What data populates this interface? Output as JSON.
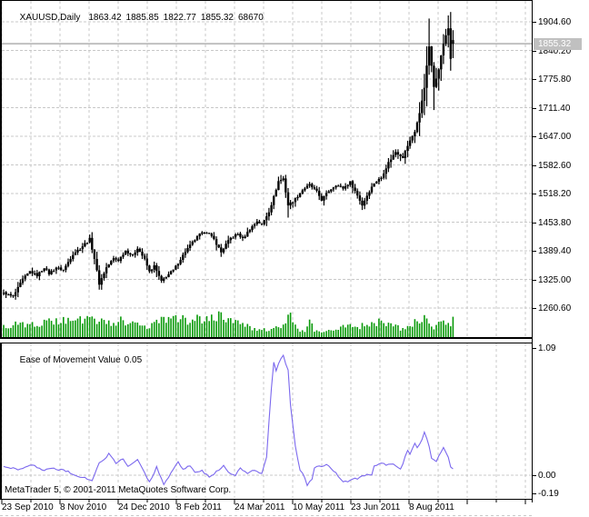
{
  "window": {
    "title_symbol": "XAUUSD,Daily",
    "ohlcv": {
      "open": "1863.42",
      "high": "1885.85",
      "low": "1822.77",
      "close": "1855.32",
      "volume": "68670"
    }
  },
  "price_axis": {
    "tick_labels": [
      "1904.60",
      "1840.20",
      "1775.80",
      "1711.40",
      "1647.00",
      "1582.60",
      "1518.20",
      "1453.80",
      "1389.40",
      "1325.00",
      "1260.60"
    ],
    "current_price_label": "1855.32"
  },
  "indicator": {
    "name": "Ease of Movement Value",
    "current_value": "0.05",
    "axis_tick_labels": [
      "1.09",
      "0.00",
      "-0.19"
    ]
  },
  "time_axis": {
    "labels": [
      "23 Sep 2010",
      "8 Nov 2010",
      "24 Dec 2010",
      "8 Feb 2011",
      "24 Mar 2011",
      "10 May 2011",
      "23 Jun 2011",
      "8 Aug 2011"
    ]
  },
  "footer": {
    "copyright": "MetaTrader 5, © 2001-2011 MetaQuotes Software Corp."
  },
  "colors": {
    "background": "#ffffff",
    "frame": "#000000",
    "grid": "#c8c8c8",
    "bars": "#000000",
    "volume": "#0a9a0a",
    "indicator_line": "#7b68ee",
    "current_price_line": "#c0c0c0",
    "price_badge_bg": "#c0c0c0",
    "price_badge_text": "#ffffff",
    "text": "#000000"
  },
  "chart_data": {
    "type": "ohlc-bar+volume+line",
    "symbol": "XAUUSD",
    "timeframe": "Daily",
    "bar_count": 189,
    "price_ticks": [
      1904.6,
      1840.2,
      1775.8,
      1711.4,
      1647.0,
      1582.6,
      1518.2,
      1453.8,
      1389.4,
      1325.0,
      1260.6
    ],
    "current_price": 1855.32,
    "last_bar": {
      "open": 1863.42,
      "high": 1885.85,
      "low": 1822.77,
      "close": 1855.32,
      "volume": 68670
    },
    "close_anchors": [
      [
        0,
        1295
      ],
      [
        4,
        1286
      ],
      [
        8,
        1325
      ],
      [
        11,
        1343
      ],
      [
        14,
        1334
      ],
      [
        17,
        1352
      ],
      [
        19,
        1338
      ],
      [
        22,
        1352
      ],
      [
        25,
        1346
      ],
      [
        29,
        1382
      ],
      [
        33,
        1400
      ],
      [
        36,
        1416
      ],
      [
        38,
        1372
      ],
      [
        40,
        1315
      ],
      [
        43,
        1352
      ],
      [
        46,
        1372
      ],
      [
        48,
        1368
      ],
      [
        51,
        1390
      ],
      [
        54,
        1378
      ],
      [
        56,
        1396
      ],
      [
        59,
        1370
      ],
      [
        61,
        1342
      ],
      [
        63,
        1355
      ],
      [
        66,
        1320
      ],
      [
        68,
        1332
      ],
      [
        71,
        1346
      ],
      [
        73,
        1362
      ],
      [
        76,
        1388
      ],
      [
        79,
        1408
      ],
      [
        82,
        1426
      ],
      [
        85,
        1432
      ],
      [
        88,
        1415
      ],
      [
        91,
        1386
      ],
      [
        93,
        1404
      ],
      [
        95,
        1418
      ],
      [
        98,
        1428
      ],
      [
        100,
        1416
      ],
      [
        103,
        1438
      ],
      [
        106,
        1456
      ],
      [
        108,
        1448
      ],
      [
        111,
        1478
      ],
      [
        113,
        1510
      ],
      [
        115,
        1546
      ],
      [
        117,
        1552
      ],
      [
        119,
        1492
      ],
      [
        122,
        1506
      ],
      [
        125,
        1526
      ],
      [
        128,
        1538
      ],
      [
        131,
        1522
      ],
      [
        133,
        1504
      ],
      [
        136,
        1524
      ],
      [
        139,
        1538
      ],
      [
        142,
        1530
      ],
      [
        145,
        1544
      ],
      [
        148,
        1514
      ],
      [
        150,
        1492
      ],
      [
        152,
        1514
      ],
      [
        155,
        1542
      ],
      [
        158,
        1554
      ],
      [
        161,
        1588
      ],
      [
        164,
        1612
      ],
      [
        167,
        1600
      ],
      [
        169,
        1626
      ],
      [
        172,
        1658
      ],
      [
        174,
        1698
      ],
      [
        176,
        1758
      ],
      [
        178,
        1850
      ],
      [
        180,
        1758
      ],
      [
        182,
        1800
      ],
      [
        184,
        1856
      ],
      [
        186,
        1890
      ],
      [
        187,
        1822
      ],
      [
        188,
        1855.32
      ]
    ],
    "spike_highs": [
      [
        36,
        1426
      ],
      [
        116,
        1560
      ],
      [
        178,
        1912
      ],
      [
        186,
        1919
      ]
    ],
    "spike_lows": [
      [
        119,
        1464
      ],
      [
        180,
        1706
      ]
    ],
    "volume_profile": [
      [
        0,
        0.42
      ],
      [
        5,
        0.52
      ],
      [
        10,
        0.45
      ],
      [
        15,
        0.55
      ],
      [
        20,
        0.61
      ],
      [
        25,
        0.7
      ],
      [
        28,
        0.61
      ],
      [
        32,
        0.73
      ],
      [
        36,
        0.79
      ],
      [
        38,
        0.67
      ],
      [
        42,
        0.76
      ],
      [
        45,
        0.61
      ],
      [
        50,
        0.67
      ],
      [
        53,
        0.55
      ],
      [
        56,
        0.48
      ],
      [
        60,
        0.39
      ],
      [
        63,
        0.61
      ],
      [
        66,
        0.73
      ],
      [
        70,
        0.67
      ],
      [
        74,
        0.73
      ],
      [
        78,
        0.67
      ],
      [
        82,
        0.76
      ],
      [
        85,
        0.7
      ],
      [
        88,
        0.79
      ],
      [
        91,
        1.0
      ],
      [
        93,
        0.73
      ],
      [
        95,
        0.61
      ],
      [
        98,
        0.55
      ],
      [
        101,
        0.48
      ],
      [
        104,
        0.3
      ],
      [
        107,
        0.27
      ],
      [
        110,
        0.3
      ],
      [
        113,
        0.36
      ],
      [
        116,
        0.42
      ],
      [
        120,
        0.95
      ],
      [
        123,
        0.3
      ],
      [
        126,
        0.24
      ],
      [
        128,
        0.67
      ],
      [
        130,
        0.24
      ],
      [
        133,
        0.21
      ],
      [
        136,
        0.3
      ],
      [
        139,
        0.36
      ],
      [
        142,
        0.48
      ],
      [
        145,
        0.55
      ],
      [
        148,
        0.42
      ],
      [
        151,
        0.48
      ],
      [
        154,
        0.55
      ],
      [
        157,
        0.61
      ],
      [
        160,
        0.42
      ],
      [
        163,
        0.55
      ],
      [
        166,
        0.3
      ],
      [
        169,
        0.48
      ],
      [
        172,
        0.61
      ],
      [
        175,
        0.73
      ],
      [
        177,
        0.67
      ],
      [
        179,
        0.36
      ],
      [
        181,
        0.42
      ],
      [
        183,
        0.61
      ],
      [
        185,
        0.67
      ],
      [
        187,
        0.55
      ],
      [
        188,
        0.67
      ]
    ],
    "eom": {
      "name": "Ease of Movement",
      "zero_level": 0.0,
      "max_tick": 1.09,
      "min_tick": -0.19,
      "values_anchors": [
        [
          0,
          0.07
        ],
        [
          6,
          0.05
        ],
        [
          12,
          0.09
        ],
        [
          17,
          0.04
        ],
        [
          21,
          0.06
        ],
        [
          27,
          0.03
        ],
        [
          33,
          -0.02
        ],
        [
          37,
          -0.04
        ],
        [
          40,
          0.1
        ],
        [
          44,
          0.18
        ],
        [
          47,
          0.1
        ],
        [
          50,
          0.14
        ],
        [
          52,
          0.08
        ],
        [
          56,
          0.13
        ],
        [
          59,
          0.02
        ],
        [
          61,
          -0.06
        ],
        [
          64,
          0.07
        ],
        [
          67,
          -0.08
        ],
        [
          70,
          0.02
        ],
        [
          73,
          0.12
        ],
        [
          75,
          0.05
        ],
        [
          78,
          0.08
        ],
        [
          80,
          0.02
        ],
        [
          83,
          0.04
        ],
        [
          86,
          -0.02
        ],
        [
          89,
          0.03
        ],
        [
          92,
          0.08
        ],
        [
          94,
          0.02
        ],
        [
          97,
          0.0
        ],
        [
          99,
          0.06
        ],
        [
          102,
          0.02
        ],
        [
          105,
          0.04
        ],
        [
          108,
          0.02
        ],
        [
          110,
          0.15
        ],
        [
          112,
          0.75
        ],
        [
          113,
          0.97
        ],
        [
          114,
          0.9
        ],
        [
          116,
          1.0
        ],
        [
          117,
          1.02
        ],
        [
          119,
          0.9
        ],
        [
          120,
          0.6
        ],
        [
          122,
          0.25
        ],
        [
          124,
          0.04
        ],
        [
          126,
          -0.02
        ],
        [
          127,
          -0.09
        ],
        [
          129,
          -0.03
        ],
        [
          130,
          0.06
        ],
        [
          132,
          0.08
        ],
        [
          133,
          0.07
        ],
        [
          135,
          0.1
        ],
        [
          137,
          0.06
        ],
        [
          139,
          0.02
        ],
        [
          141,
          -0.03
        ],
        [
          142,
          -0.05
        ],
        [
          144,
          -0.06
        ],
        [
          145,
          -0.04
        ],
        [
          147,
          -0.02
        ],
        [
          148,
          -0.03
        ],
        [
          150,
          -0.01
        ],
        [
          152,
          0.01
        ],
        [
          154,
          0.0
        ],
        [
          155,
          0.08
        ],
        [
          157,
          0.1
        ],
        [
          160,
          0.09
        ],
        [
          162,
          0.1
        ],
        [
          164,
          0.08
        ],
        [
          166,
          0.05
        ],
        [
          167,
          0.1
        ],
        [
          169,
          0.22
        ],
        [
          170,
          0.18
        ],
        [
          172,
          0.28
        ],
        [
          173,
          0.24
        ],
        [
          175,
          0.3
        ],
        [
          176,
          0.37
        ],
        [
          178,
          0.25
        ],
        [
          179,
          0.15
        ],
        [
          181,
          0.12
        ],
        [
          183,
          0.2
        ],
        [
          184,
          0.24
        ],
        [
          186,
          0.15
        ],
        [
          187,
          0.07
        ],
        [
          188,
          0.05
        ]
      ]
    }
  }
}
